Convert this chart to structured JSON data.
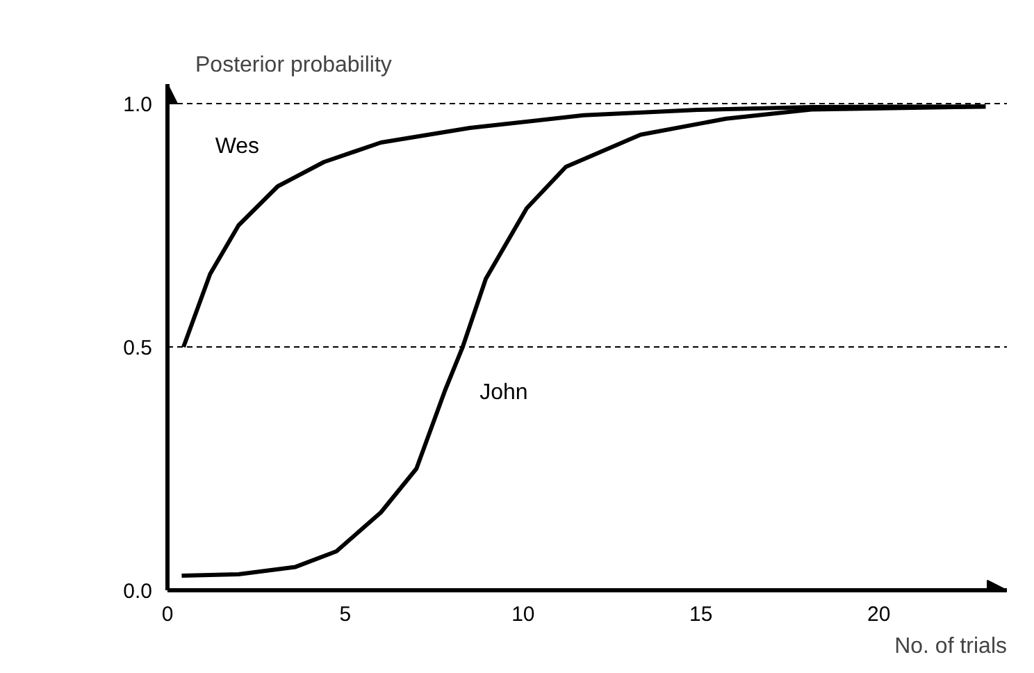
{
  "chart_data": {
    "type": "line",
    "xlabel": "No. of trials",
    "ylabel": "Posterior probability",
    "xlim": [
      0,
      23.6
    ],
    "ylim": [
      0,
      1.04
    ],
    "xticks": [
      0,
      5,
      10,
      15,
      20
    ],
    "yticks": [
      {
        "value": 0,
        "label": "0.0"
      },
      {
        "value": 0.5,
        "label": "0.5"
      },
      {
        "value": 1,
        "label": "1.0"
      }
    ],
    "series": [
      {
        "name": "Wes",
        "color": "#000000",
        "x": [
          0.45,
          1.2,
          2.0,
          3.1,
          4.4,
          6.0,
          8.5,
          11.7,
          14.9,
          18.1,
          23
        ],
        "values": [
          0.5,
          0.65,
          0.75,
          0.83,
          0.88,
          0.92,
          0.95,
          0.976,
          0.987,
          0.993,
          0.994
        ]
      },
      {
        "name": "John",
        "color": "#000000",
        "x": [
          0.4,
          2,
          3.6,
          4.75,
          6.0,
          7.0,
          7.8,
          8.3,
          8.95,
          10.1,
          11.2,
          13.3,
          15.7,
          18.1,
          23
        ],
        "values": [
          0.03,
          0.033,
          0.048,
          0.08,
          0.16,
          0.25,
          0.41,
          0.5,
          0.64,
          0.785,
          0.87,
          0.936,
          0.969,
          0.988,
          0.994
        ]
      }
    ],
    "ref_lines": [
      {
        "axis": "y",
        "value": 0.5,
        "line_style": "dashed"
      },
      {
        "axis": "y",
        "value": 1.0,
        "line_style": "dashed"
      }
    ],
    "grid": false,
    "line_style": "solid",
    "marker": "none"
  }
}
